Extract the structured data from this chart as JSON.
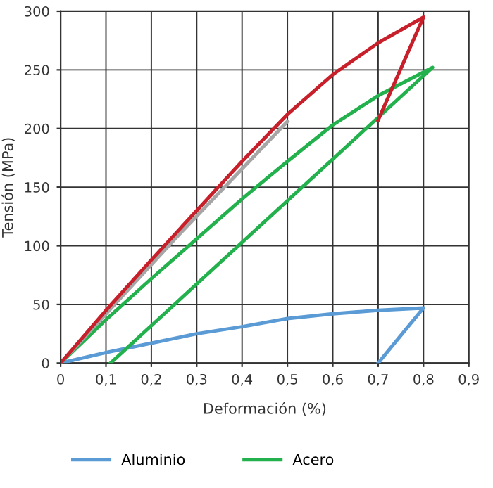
{
  "chart_data": {
    "type": "line",
    "xlabel": "Deformación (%)",
    "ylabel": "Tensión (MPa)",
    "series": [
      {
        "name": "Aluminio",
        "color": "#5b9bd5",
        "x": [
          0,
          0.1,
          0.2,
          0.3,
          0.4,
          0.5,
          0.6,
          0.7,
          0.8,
          0.7
        ],
        "values": [
          0,
          9,
          17,
          25,
          31,
          38,
          42,
          45,
          47,
          0
        ]
      },
      {
        "name": "Acero",
        "color": "#22b14c",
        "x": [
          0,
          0.1,
          0.2,
          0.3,
          0.4,
          0.5,
          0.6,
          0.7,
          0.82,
          0.11
        ],
        "values": [
          0,
          37,
          72,
          106,
          140,
          172,
          203,
          228,
          252,
          0
        ]
      },
      {
        "color": "#a6a6a6",
        "x": [
          0,
          0.25,
          0.5
        ],
        "values": [
          0,
          105,
          206
        ]
      },
      {
        "color": "#c8202a",
        "x": [
          0,
          0.1,
          0.2,
          0.3,
          0.4,
          0.5,
          0.6,
          0.7,
          0.8,
          0.7
        ],
        "values": [
          0,
          45,
          88,
          130,
          172,
          212,
          246,
          273,
          295,
          207
        ]
      }
    ],
    "xlim": [
      0,
      0.9
    ],
    "xticks": [
      0,
      {
        "value": 0.1,
        "label": "0,1"
      },
      {
        "value": 0.2,
        "label": "0,2"
      },
      {
        "value": 0.3,
        "label": "0,3"
      },
      {
        "value": 0.4,
        "label": "0,4"
      },
      {
        "value": 0.5,
        "label": "0,5"
      },
      {
        "value": 0.6,
        "label": "0,6"
      },
      {
        "value": 0.7,
        "label": "0,7"
      },
      {
        "value": 0.8,
        "label": "0,8"
      },
      {
        "value": 0.9,
        "label": "0,9"
      }
    ],
    "ylim": [
      0,
      300
    ],
    "yticks": [
      0,
      50,
      100,
      150,
      200,
      250,
      300
    ],
    "grid": true,
    "legend": "bottom",
    "marker": "none",
    "line_style": "solid"
  }
}
